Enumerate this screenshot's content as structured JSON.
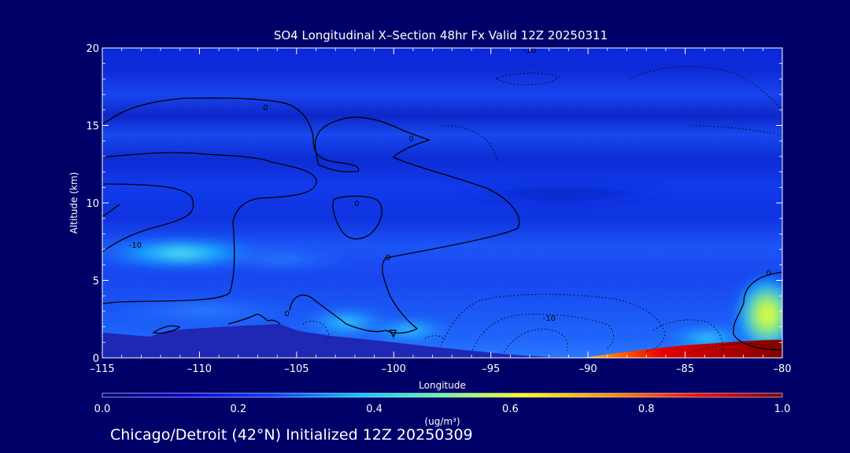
{
  "chart_data": {
    "type": "heatmap",
    "title": "SO4 Longitudinal X–Section 48hr  Fx Valid 12Z 20250311",
    "xlabel": "Longitude",
    "ylabel": "Altitude (km)",
    "xlim": [
      -115,
      -80
    ],
    "ylim": [
      0,
      20
    ],
    "x_ticks": [
      "–115",
      "–110",
      "–105",
      "–100",
      "–95",
      "–90",
      "–85",
      "–80"
    ],
    "x_tick_values": [
      -115,
      -110,
      -105,
      -100,
      -95,
      -90,
      -85,
      -80
    ],
    "y_ticks": [
      "0",
      "5",
      "10",
      "15",
      "20"
    ],
    "y_tick_values": [
      0,
      5,
      10,
      15,
      20
    ],
    "colorbar": {
      "label": "(ug/m³)",
      "range": [
        0.0,
        1.0
      ],
      "tick_labels": [
        "0.0",
        "0.2",
        "0.4",
        "0.6",
        "0.8",
        "1.0"
      ],
      "tick_values": [
        0.0,
        0.2,
        0.4,
        0.6,
        0.8,
        1.0
      ]
    },
    "contour_labels": [
      {
        "text": "0",
        "lon": -106.6,
        "alt": 16.2
      },
      {
        "text": "0",
        "lon": -99.1,
        "alt": 14.2
      },
      {
        "text": "0",
        "lon": -101.9,
        "alt": 10.0
      },
      {
        "text": "0",
        "lon": -100.3,
        "alt": 6.5
      },
      {
        "text": "0",
        "lon": -105.5,
        "alt": 2.9
      },
      {
        "text": "0",
        "lon": -80.7,
        "alt": 5.5
      },
      {
        "text": "-10",
        "lon": -113.3,
        "alt": 7.3
      },
      {
        "text": "-10",
        "lon": -92.0,
        "alt": 2.6
      },
      {
        "text": "-10",
        "lon": -93.0,
        "alt": 19.9
      },
      {
        "text": "7",
        "lon": -100.0,
        "alt": 1.5
      }
    ],
    "colors": {
      "background": "#000069",
      "terrain": "#1e28b4",
      "colormap": [
        "#00007a",
        "#0000d2",
        "#003cff",
        "#00c8ff",
        "#64ffa0",
        "#ffff00",
        "#ff8c00",
        "#ff0000",
        "#780000"
      ]
    },
    "grid": false
  },
  "footer": "Chicago/Detroit (42°N) Initialized 12Z 20250309"
}
